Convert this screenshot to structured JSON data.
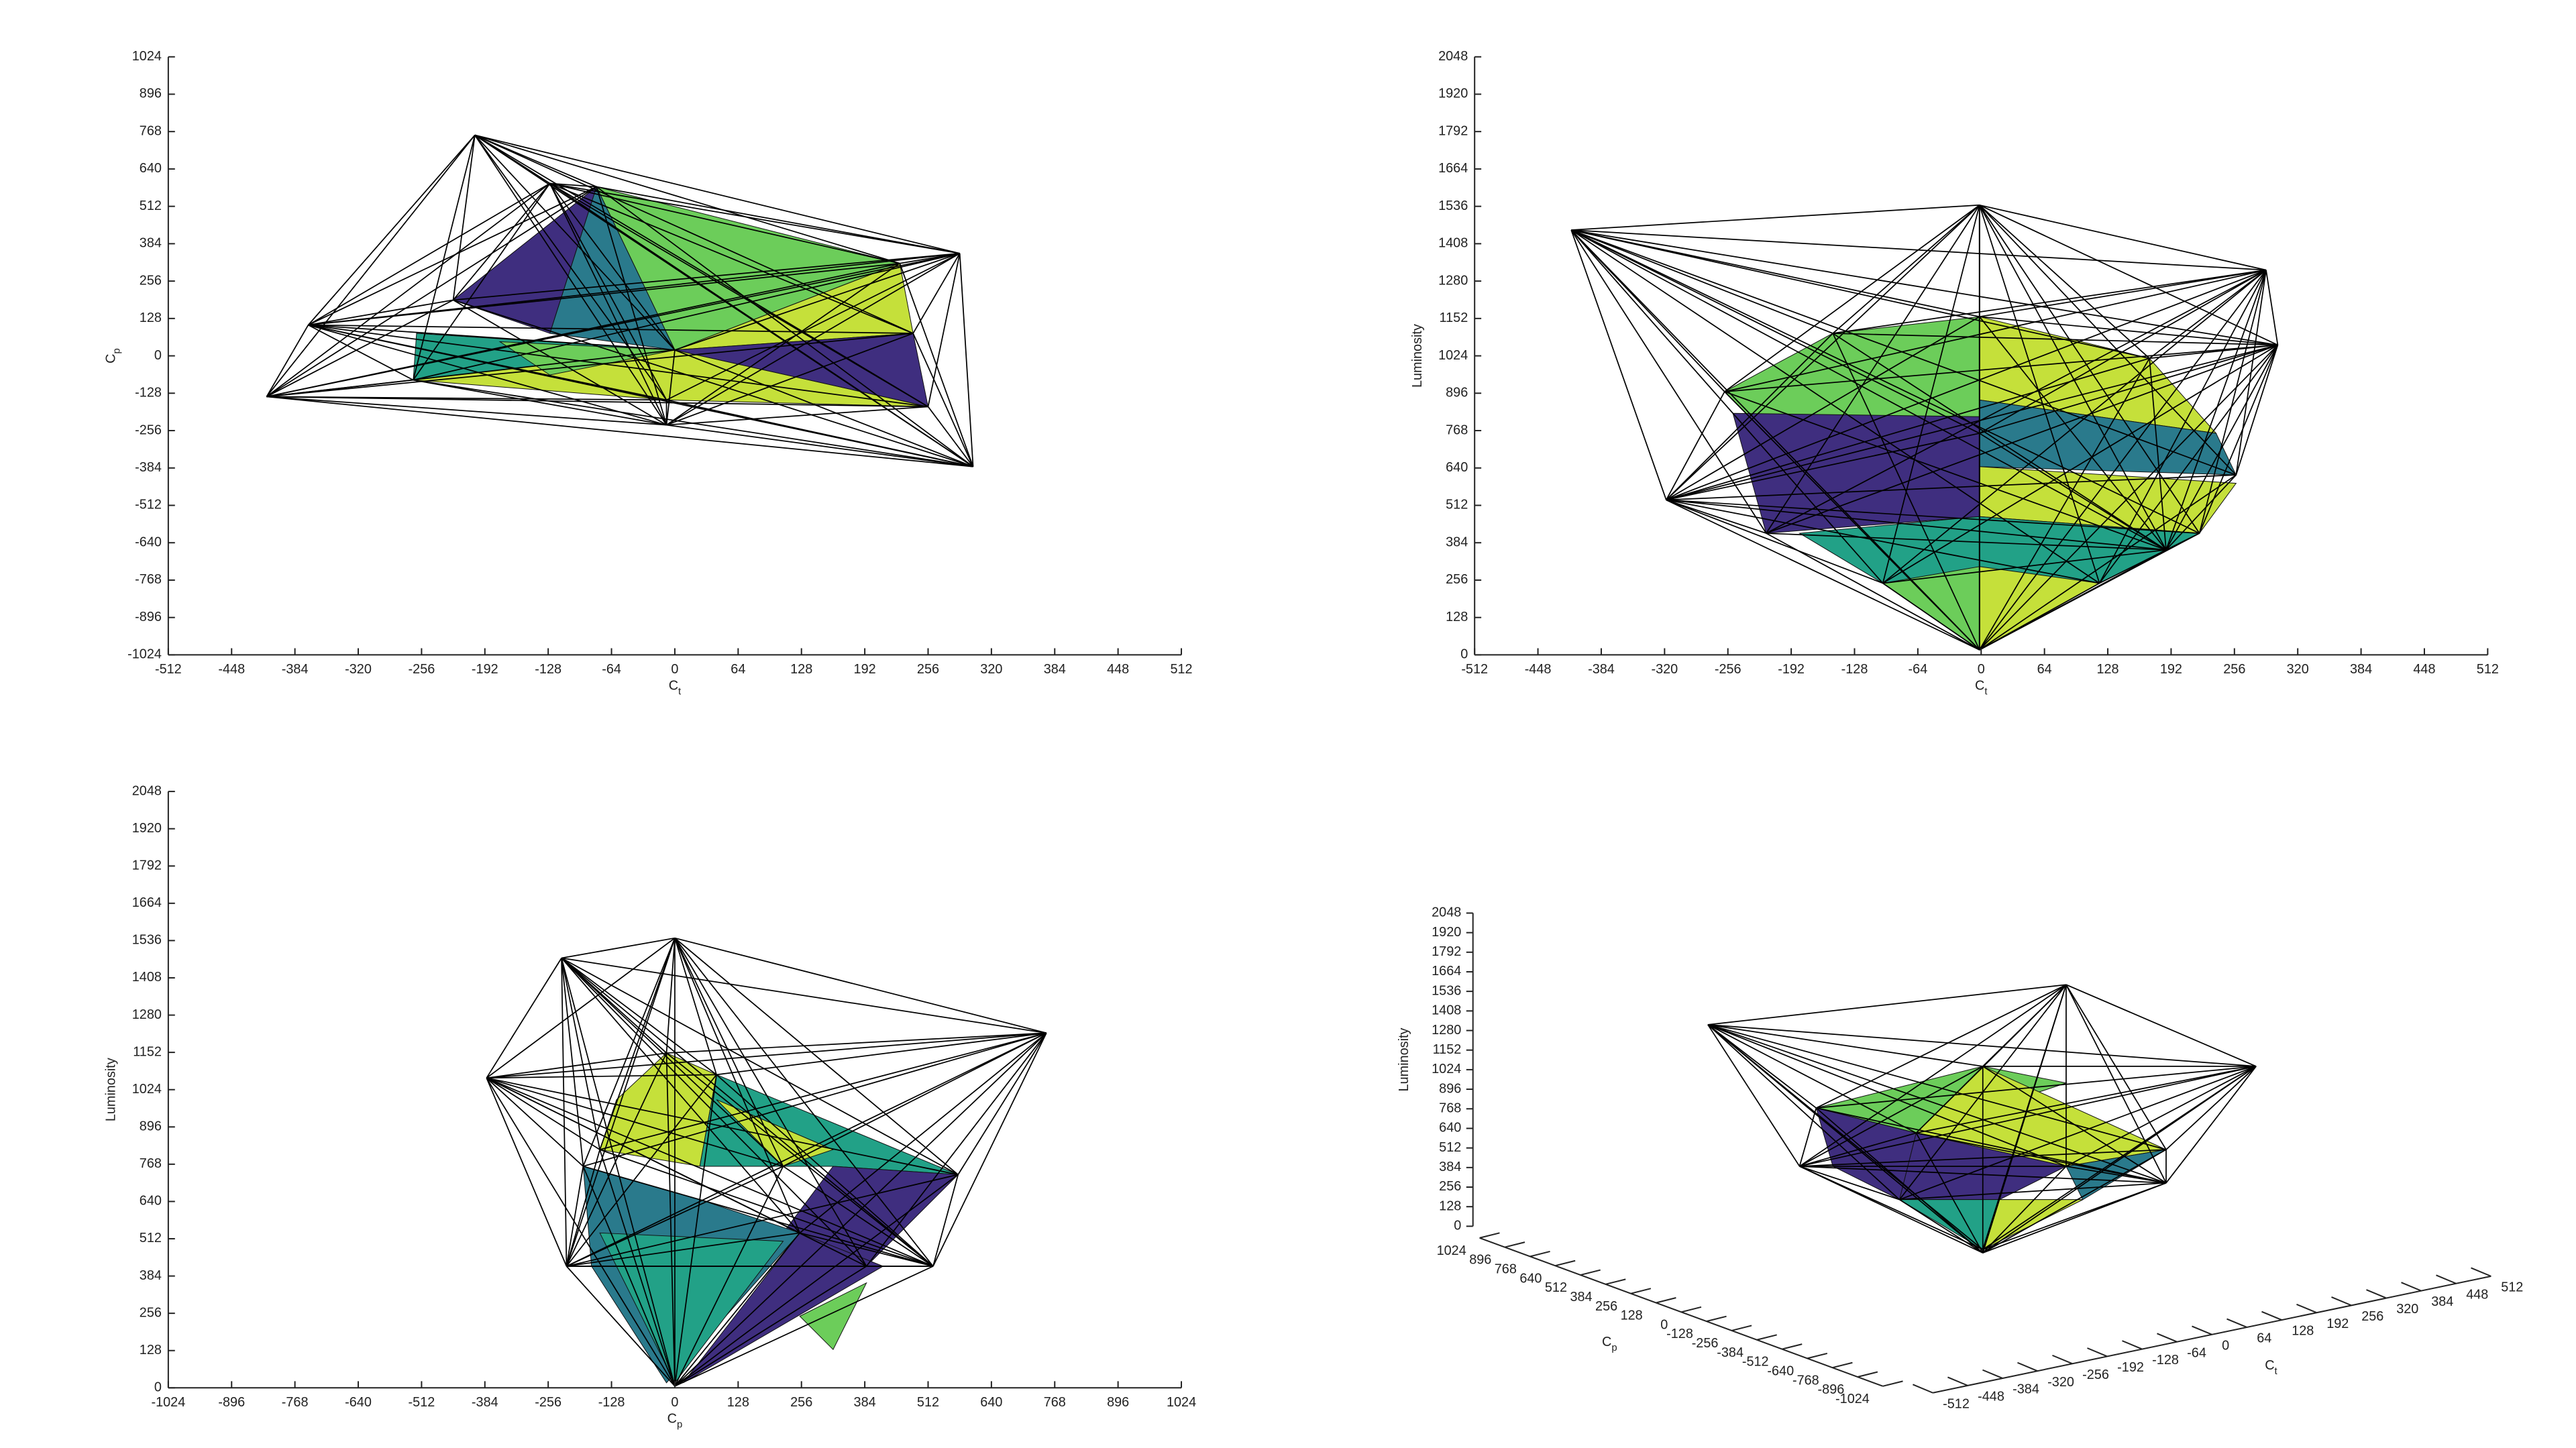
{
  "chart_data": [
    {
      "type": "mesh2d",
      "xlabel": [
        "C",
        "t"
      ],
      "ylabel": [
        "C",
        "p"
      ],
      "xlim": [
        -512,
        512
      ],
      "xticks": [
        -512,
        -448,
        -384,
        -320,
        -256,
        -192,
        -128,
        -64,
        0,
        64,
        128,
        192,
        256,
        320,
        384,
        448,
        512
      ],
      "ylim": [
        -1024,
        1024
      ],
      "yticks": [
        -1024,
        -896,
        -768,
        -640,
        -512,
        -384,
        -256,
        -128,
        0,
        128,
        256,
        384,
        512,
        640,
        768,
        896,
        1024
      ]
    },
    {
      "type": "mesh2d",
      "xlabel": [
        "C",
        "t"
      ],
      "ylabel": "Luminosity",
      "xlim": [
        -512,
        512
      ],
      "xticks": [
        -512,
        -448,
        -384,
        -320,
        -256,
        -192,
        -128,
        -64,
        0,
        64,
        128,
        192,
        256,
        320,
        384,
        448,
        512
      ],
      "ylim": [
        0,
        2048
      ],
      "yticks": [
        0,
        128,
        256,
        384,
        512,
        640,
        768,
        896,
        1024,
        1152,
        1280,
        1408,
        1536,
        1664,
        1792,
        1920,
        2048
      ]
    },
    {
      "type": "mesh2d",
      "xlabel": [
        "C",
        "p"
      ],
      "ylabel": "Luminosity",
      "xlim": [
        -1024,
        1024
      ],
      "xticks": [
        -1024,
        -896,
        -768,
        -640,
        -512,
        -384,
        -256,
        -128,
        0,
        128,
        256,
        384,
        512,
        640,
        768,
        896,
        1024
      ],
      "ylim": [
        0,
        2048
      ],
      "yticks": [
        0,
        128,
        256,
        384,
        512,
        640,
        768,
        896,
        1024,
        1152,
        1280,
        1408,
        1536,
        1664,
        1792,
        1920,
        2048
      ]
    },
    {
      "type": "mesh3d",
      "xlabel": [
        "C",
        "t"
      ],
      "ylabel": [
        "C",
        "p"
      ],
      "zlabel": "Luminosity",
      "xlim": [
        -512,
        512
      ],
      "xticks": [
        -512,
        -448,
        -384,
        -320,
        -256,
        -192,
        -128,
        -64,
        0,
        64,
        128,
        192,
        256,
        320,
        384,
        448,
        512
      ],
      "ylim": [
        -1024,
        1024
      ],
      "yticks": [
        -1024,
        -896,
        -768,
        -640,
        -512,
        -384,
        -256,
        -128,
        0,
        128,
        256,
        384,
        512,
        640,
        768,
        896,
        1024
      ],
      "zlim": [
        0,
        2048
      ],
      "zticks": [
        0,
        128,
        256,
        384,
        512,
        640,
        768,
        896,
        1024,
        1152,
        1280,
        1408,
        1536,
        1664,
        1792,
        1920,
        2048
      ]
    }
  ]
}
